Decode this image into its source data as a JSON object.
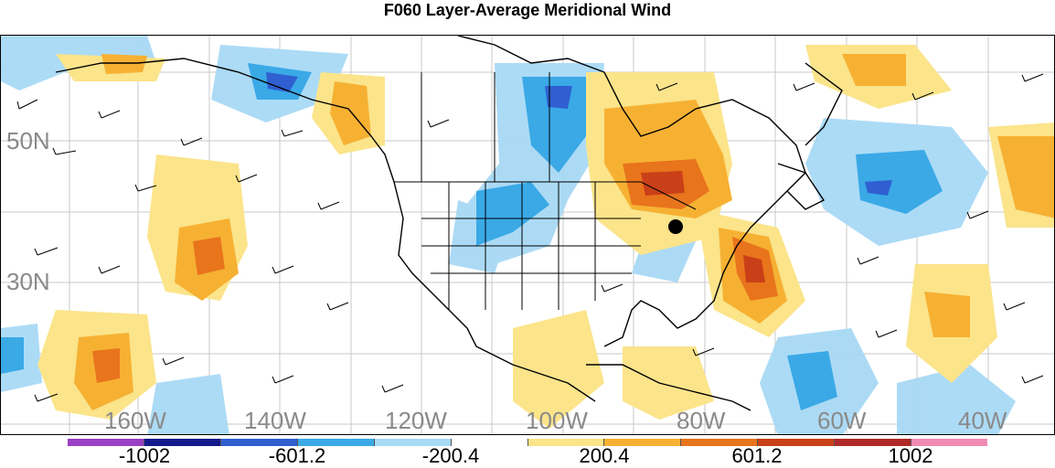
{
  "title": "F060 Layer-Average Meridional Wind",
  "lat_labels": [
    "50N",
    "30N"
  ],
  "lon_labels": [
    "160W",
    "140W",
    "120W",
    "100W",
    "80W",
    "60W",
    "40W"
  ],
  "colorbar": {
    "colors": [
      "#9b40c4",
      "#141a8c",
      "#2f5fd0",
      "#3aa9e6",
      "#a8d9f5",
      "#ffffff",
      "#fbe48a",
      "#f6b133",
      "#e8741c",
      "#c94018",
      "#b02a2a",
      "#f08cb4"
    ],
    "labels": [
      "-1002",
      "-601.2",
      "-200.4",
      "200.4",
      "601.2",
      "1002"
    ]
  },
  "marker": {
    "name": "black-dot"
  }
}
